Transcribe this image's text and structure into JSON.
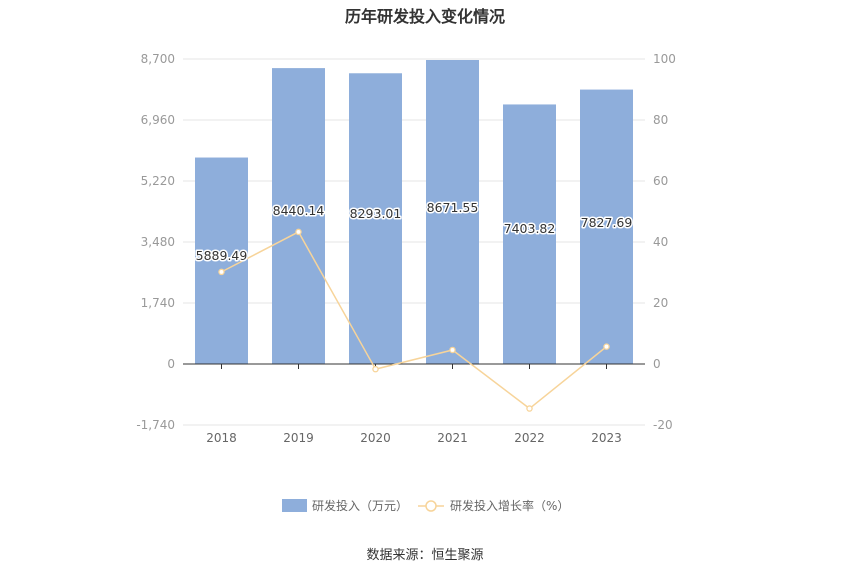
{
  "chart_data": {
    "type": "bar",
    "title": "历年研发投入变化情况",
    "categories": [
      "2018",
      "2019",
      "2020",
      "2021",
      "2022",
      "2023"
    ],
    "series": [
      {
        "name": "研发投入（万元）",
        "type": "bar",
        "axis": "left",
        "color": "#8eaedb",
        "values": [
          5889.49,
          8440.14,
          8293.01,
          8671.55,
          7403.82,
          7827.69
        ],
        "labels": [
          "5889.49",
          "8440.14",
          "8293.01",
          "8671.55",
          "7403.82",
          "7827.69"
        ]
      },
      {
        "name": "研发投入增长率（%）",
        "type": "line",
        "axis": "right",
        "color": "#f7d49a",
        "values": [
          30.2,
          43.3,
          -1.7,
          4.6,
          -14.6,
          5.7
        ]
      }
    ],
    "y_left": {
      "min": -1740,
      "max": 8700,
      "ticks": [
        "-1,740",
        "0",
        "1,740",
        "3,480",
        "5,220",
        "6,960",
        "8,700"
      ]
    },
    "y_right": {
      "min": -20,
      "max": 100,
      "ticks": [
        "-20",
        "0",
        "20",
        "40",
        "60",
        "80",
        "100"
      ]
    },
    "grid": true,
    "legend_position": "bottom"
  },
  "source_label": "数据来源：恒生聚源"
}
